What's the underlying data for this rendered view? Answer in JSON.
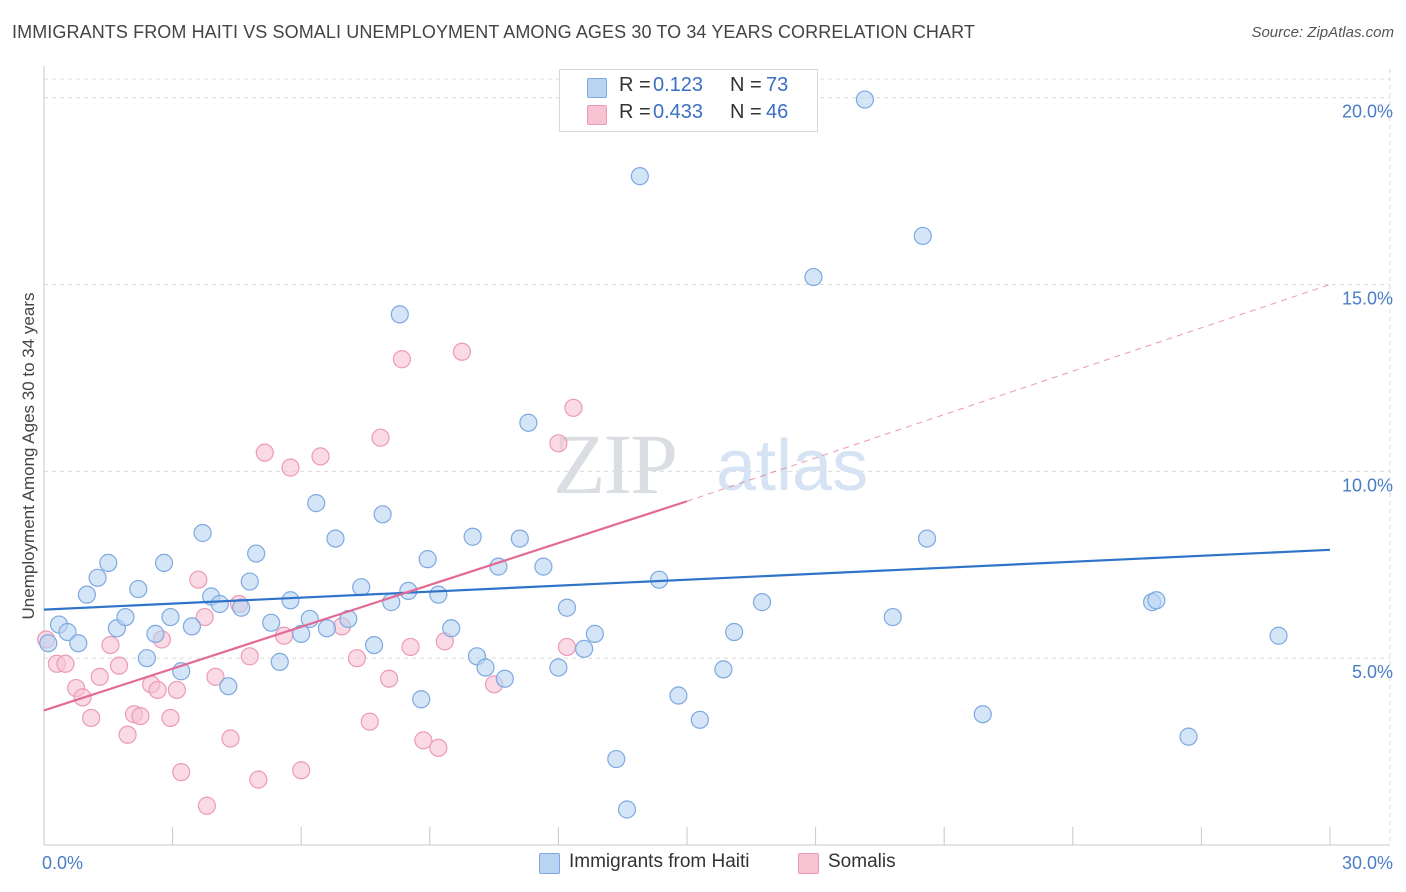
{
  "header": {
    "title": "IMMIGRANTS FROM HAITI VS SOMALI UNEMPLOYMENT AMONG AGES 30 TO 34 YEARS CORRELATION CHART",
    "source": "Source: ZipAtlas.com"
  },
  "watermark": {
    "zip": "ZIP",
    "atlas": "atlas"
  },
  "legend": {
    "r_label": "R =",
    "n_label": "N =",
    "haiti": {
      "r": "0.123",
      "n": "73"
    },
    "somali": {
      "r": "0.433",
      "n": "46"
    }
  },
  "colors": {
    "haiti_fill": "#b9d3f3",
    "haiti_stroke": "#7ea9e0",
    "haiti_line": "#2f74c9",
    "somali_fill": "#f7c3d3",
    "somali_stroke": "#ec9ab5",
    "somali_line": "#e26a95",
    "grid": "#d9d9d9",
    "tick_label": "#4a7cc7"
  },
  "chart_data": {
    "type": "scatter",
    "title": "IMMIGRANTS FROM HAITI VS SOMALI UNEMPLOYMENT AMONG AGES 30 TO 34 YEARS CORRELATION CHART",
    "xlabel": "",
    "ylabel": "Unemployment Among Ages 30 to 34 years",
    "xlim": [
      0,
      30
    ],
    "ylim": [
      0,
      20.5
    ],
    "x_tick_labels": [
      "0.0%",
      "30.0%"
    ],
    "y_ticks": [
      {
        "value": 5,
        "label": "5.0%"
      },
      {
        "value": 10,
        "label": "10.0%"
      },
      {
        "value": 15,
        "label": "15.0%"
      },
      {
        "value": 20,
        "label": "20.0%"
      }
    ],
    "grid": true,
    "legend_position": "bottom-center",
    "series": [
      {
        "name": "Immigrants from Haiti",
        "r": 0.123,
        "n": 73,
        "trend": {
          "x": [
            0,
            30
          ],
          "y": [
            6.3,
            7.9
          ]
        },
        "points": [
          [
            0.1,
            5.4
          ],
          [
            0.35,
            5.9
          ],
          [
            0.55,
            5.7
          ],
          [
            0.8,
            5.4
          ],
          [
            1.0,
            6.7
          ],
          [
            1.25,
            7.15
          ],
          [
            1.5,
            7.55
          ],
          [
            1.7,
            5.8
          ],
          [
            1.9,
            6.1
          ],
          [
            2.2,
            6.85
          ],
          [
            2.4,
            5.0
          ],
          [
            2.6,
            5.65
          ],
          [
            2.8,
            7.55
          ],
          [
            2.95,
            6.1
          ],
          [
            3.2,
            4.65
          ],
          [
            3.45,
            5.85
          ],
          [
            3.7,
            8.35
          ],
          [
            3.9,
            6.65
          ],
          [
            4.1,
            6.45
          ],
          [
            4.3,
            4.25
          ],
          [
            4.6,
            6.35
          ],
          [
            4.8,
            7.05
          ],
          [
            4.95,
            7.8
          ],
          [
            5.3,
            5.95
          ],
          [
            5.5,
            4.9
          ],
          [
            5.75,
            6.55
          ],
          [
            6.0,
            5.65
          ],
          [
            6.2,
            6.05
          ],
          [
            6.35,
            9.15
          ],
          [
            6.6,
            5.8
          ],
          [
            6.8,
            8.2
          ],
          [
            7.1,
            6.05
          ],
          [
            7.4,
            6.9
          ],
          [
            7.7,
            5.35
          ],
          [
            7.9,
            8.85
          ],
          [
            8.1,
            6.5
          ],
          [
            8.3,
            14.2
          ],
          [
            8.5,
            6.8
          ],
          [
            8.8,
            3.9
          ],
          [
            8.95,
            7.65
          ],
          [
            9.2,
            6.7
          ],
          [
            9.5,
            5.8
          ],
          [
            10.0,
            8.25
          ],
          [
            10.1,
            5.05
          ],
          [
            10.3,
            4.75
          ],
          [
            10.6,
            7.45
          ],
          [
            10.75,
            4.45
          ],
          [
            11.1,
            8.2
          ],
          [
            11.3,
            11.3
          ],
          [
            11.65,
            7.45
          ],
          [
            12.0,
            4.75
          ],
          [
            12.2,
            6.35
          ],
          [
            12.6,
            5.25
          ],
          [
            12.85,
            5.65
          ],
          [
            13.35,
            2.3
          ],
          [
            13.6,
            0.95
          ],
          [
            13.9,
            17.9
          ],
          [
            14.35,
            7.1
          ],
          [
            14.8,
            4.0
          ],
          [
            15.3,
            3.35
          ],
          [
            15.85,
            4.7
          ],
          [
            16.1,
            5.7
          ],
          [
            16.75,
            6.5
          ],
          [
            17.95,
            15.2
          ],
          [
            19.15,
            19.95
          ],
          [
            19.8,
            6.1
          ],
          [
            20.5,
            16.3
          ],
          [
            20.6,
            8.2
          ],
          [
            21.9,
            3.5
          ],
          [
            25.85,
            6.5
          ],
          [
            25.95,
            6.55
          ],
          [
            26.7,
            2.9
          ],
          [
            28.8,
            5.6
          ]
        ]
      },
      {
        "name": "Somalis",
        "r": 0.433,
        "n": 46,
        "trend": {
          "x": [
            0,
            15
          ],
          "y": [
            3.6,
            9.2
          ]
        },
        "trend_extension": {
          "x": [
            15,
            30
          ],
          "y": [
            9.2,
            15.0
          ]
        },
        "points": [
          [
            0.05,
            5.5
          ],
          [
            0.3,
            4.85
          ],
          [
            0.5,
            4.85
          ],
          [
            0.75,
            4.2
          ],
          [
            0.9,
            3.95
          ],
          [
            1.1,
            3.4
          ],
          [
            1.3,
            4.5
          ],
          [
            1.55,
            5.35
          ],
          [
            1.75,
            4.8
          ],
          [
            1.95,
            2.95
          ],
          [
            2.1,
            3.5
          ],
          [
            2.25,
            3.45
          ],
          [
            2.5,
            4.3
          ],
          [
            2.65,
            4.15
          ],
          [
            2.75,
            5.5
          ],
          [
            2.95,
            3.4
          ],
          [
            3.1,
            4.15
          ],
          [
            3.2,
            1.95
          ],
          [
            3.6,
            7.1
          ],
          [
            3.75,
            6.1
          ],
          [
            3.8,
            1.05
          ],
          [
            4.0,
            4.5
          ],
          [
            4.35,
            2.85
          ],
          [
            4.55,
            6.45
          ],
          [
            4.8,
            5.05
          ],
          [
            5.0,
            1.75
          ],
          [
            5.15,
            10.5
          ],
          [
            5.6,
            5.6
          ],
          [
            5.75,
            10.1
          ],
          [
            6.0,
            2.0
          ],
          [
            6.45,
            10.4
          ],
          [
            6.95,
            5.85
          ],
          [
            7.3,
            5.0
          ],
          [
            7.6,
            3.3
          ],
          [
            7.85,
            10.9
          ],
          [
            8.05,
            4.45
          ],
          [
            8.35,
            13.0
          ],
          [
            8.55,
            5.3
          ],
          [
            8.85,
            2.8
          ],
          [
            9.2,
            2.6
          ],
          [
            9.35,
            5.45
          ],
          [
            9.75,
            13.2
          ],
          [
            10.5,
            4.3
          ],
          [
            12.0,
            10.75
          ],
          [
            12.2,
            5.3
          ],
          [
            12.35,
            11.7
          ]
        ]
      }
    ]
  },
  "bottom_legend": {
    "haiti": "Immigrants from Haiti",
    "somali": "Somalis"
  }
}
